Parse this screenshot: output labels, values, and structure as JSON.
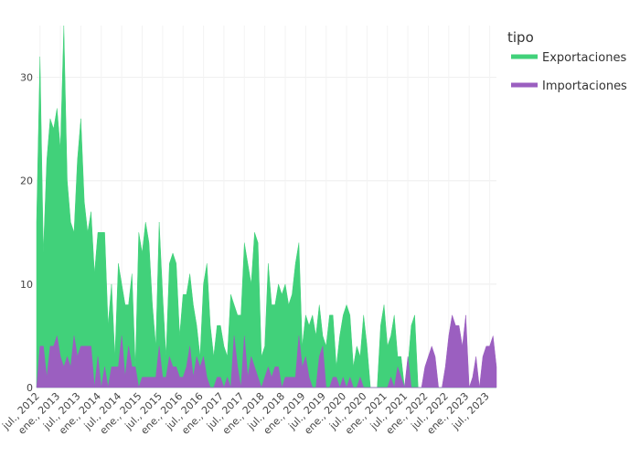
{
  "chart_data": {
    "type": "area",
    "legend_title": "tipo",
    "x": [
      "2012-06",
      "2012-07",
      "2012-08",
      "2012-09",
      "2012-10",
      "2012-11",
      "2012-12",
      "2013-01",
      "2013-02",
      "2013-03",
      "2013-04",
      "2013-05",
      "2013-06",
      "2013-07",
      "2013-08",
      "2013-09",
      "2013-10",
      "2013-11",
      "2013-12",
      "2014-01",
      "2014-02",
      "2014-03",
      "2014-04",
      "2014-05",
      "2014-06",
      "2014-07",
      "2014-08",
      "2014-09",
      "2014-10",
      "2014-11",
      "2014-12",
      "2015-01",
      "2015-02",
      "2015-03",
      "2015-04",
      "2015-05",
      "2015-06",
      "2015-07",
      "2015-08",
      "2015-09",
      "2015-10",
      "2015-11",
      "2015-12",
      "2016-01",
      "2016-02",
      "2016-03",
      "2016-04",
      "2016-05",
      "2016-06",
      "2016-07",
      "2016-08",
      "2016-09",
      "2016-10",
      "2016-11",
      "2016-12",
      "2017-01",
      "2017-02",
      "2017-03",
      "2017-04",
      "2017-05",
      "2017-06",
      "2017-07",
      "2017-08",
      "2017-09",
      "2017-10",
      "2017-11",
      "2017-12",
      "2018-01",
      "2018-02",
      "2018-03",
      "2018-04",
      "2018-05",
      "2018-06",
      "2018-07",
      "2018-08",
      "2018-09",
      "2018-10",
      "2018-11",
      "2018-12",
      "2019-01",
      "2019-02",
      "2019-03",
      "2019-04",
      "2019-05",
      "2019-06",
      "2019-07",
      "2019-08",
      "2019-09",
      "2019-10",
      "2019-11",
      "2019-12",
      "2020-01",
      "2020-02",
      "2020-03",
      "2020-04",
      "2020-05",
      "2020-06",
      "2020-07",
      "2020-08",
      "2020-09",
      "2020-10",
      "2020-11",
      "2020-12",
      "2021-01",
      "2021-02",
      "2021-03",
      "2021-04",
      "2021-05",
      "2021-06",
      "2021-07",
      "2021-08",
      "2021-09",
      "2021-10",
      "2021-11",
      "2021-12",
      "2022-01",
      "2022-02",
      "2022-03",
      "2022-04",
      "2022-05",
      "2022-06",
      "2022-07",
      "2022-08",
      "2022-09",
      "2022-10",
      "2022-11",
      "2022-12",
      "2023-01",
      "2023-02",
      "2023-03",
      "2023-04",
      "2023-05",
      "2023-06",
      "2023-07",
      "2023-08",
      "2023-09"
    ],
    "series": [
      {
        "name": "Exportaciones",
        "color": "#41d17a",
        "values": [
          16,
          32,
          13,
          22,
          26,
          25,
          27,
          23,
          35,
          20,
          16,
          15,
          22,
          26,
          18,
          15,
          17,
          11,
          15,
          15,
          15,
          6,
          10,
          3,
          12,
          10,
          8,
          8,
          11,
          2,
          15,
          13,
          16,
          14,
          8,
          4,
          16,
          9,
          3,
          12,
          13,
          12,
          5,
          9,
          9,
          11,
          8,
          6,
          3,
          10,
          12,
          6,
          3,
          6,
          6,
          4,
          3,
          9,
          8,
          7,
          7,
          14,
          12,
          10,
          15,
          14,
          3,
          4,
          12,
          8,
          8,
          10,
          9,
          10,
          8,
          9,
          12,
          14,
          4,
          7,
          6,
          7,
          5,
          8,
          5,
          4,
          7,
          7,
          2,
          5,
          7,
          8,
          7,
          2,
          4,
          3,
          7,
          4,
          0,
          0,
          0,
          6,
          8,
          4,
          5,
          7,
          3,
          3,
          0,
          2,
          6,
          7,
          0,
          0,
          0,
          0,
          0,
          0,
          0,
          0,
          0,
          0,
          0,
          0,
          0,
          0,
          0,
          0,
          0,
          0,
          0,
          0,
          0,
          0,
          0,
          0
        ]
      },
      {
        "name": "Importaciones",
        "color": "#9b5fc0",
        "values": [
          0,
          4,
          4,
          1,
          4,
          4,
          5,
          3,
          2,
          3,
          2,
          5,
          3,
          4,
          4,
          4,
          4,
          0,
          3,
          0,
          2,
          0,
          2,
          2,
          2,
          5,
          1,
          4,
          2,
          2,
          0,
          1,
          1,
          1,
          1,
          1,
          4,
          1,
          1,
          3,
          2,
          2,
          1,
          1,
          2,
          4,
          1,
          3,
          2,
          3,
          1,
          0,
          0,
          1,
          1,
          0,
          1,
          0,
          5,
          2,
          0,
          5,
          1,
          3,
          2,
          1,
          0,
          1,
          2,
          1,
          2,
          2,
          0,
          1,
          1,
          1,
          1,
          5,
          2,
          3,
          1,
          0,
          0,
          3,
          4,
          0,
          0,
          1,
          1,
          0,
          1,
          0,
          1,
          0,
          0,
          1,
          0,
          0,
          0,
          0,
          0,
          0,
          0,
          0,
          1,
          0,
          2,
          1,
          0,
          3,
          0,
          0,
          0,
          0,
          2,
          3,
          4,
          3,
          0,
          0,
          2,
          5,
          7,
          6,
          6,
          4,
          7,
          0,
          1,
          3,
          0,
          3,
          4,
          4,
          5,
          2
        ]
      }
    ],
    "xlim": [
      "2012-06",
      "2023-09"
    ],
    "xticks": [
      {
        "value": "2012-07",
        "label": "jul., 2012"
      },
      {
        "value": "2013-01",
        "label": "ene., 2013"
      },
      {
        "value": "2013-07",
        "label": "jul., 2013"
      },
      {
        "value": "2014-01",
        "label": "ene., 2014"
      },
      {
        "value": "2014-07",
        "label": "jul., 2014"
      },
      {
        "value": "2015-01",
        "label": "ene., 2015"
      },
      {
        "value": "2015-07",
        "label": "jul., 2015"
      },
      {
        "value": "2016-01",
        "label": "ene., 2016"
      },
      {
        "value": "2016-07",
        "label": "jul., 2016"
      },
      {
        "value": "2017-01",
        "label": "ene., 2017"
      },
      {
        "value": "2017-07",
        "label": "jul., 2017"
      },
      {
        "value": "2018-01",
        "label": "ene., 2018"
      },
      {
        "value": "2018-07",
        "label": "jul., 2018"
      },
      {
        "value": "2019-01",
        "label": "ene., 2019"
      },
      {
        "value": "2019-07",
        "label": "jul., 2019"
      },
      {
        "value": "2020-01",
        "label": "ene., 2020"
      },
      {
        "value": "2020-07",
        "label": "jul., 2020"
      },
      {
        "value": "2021-01",
        "label": "ene., 2021"
      },
      {
        "value": "2021-07",
        "label": "jul., 2021"
      },
      {
        "value": "2022-01",
        "label": "ene., 2022"
      },
      {
        "value": "2022-07",
        "label": "jul., 2022"
      },
      {
        "value": "2023-01",
        "label": "ene., 2023"
      },
      {
        "value": "2023-07",
        "label": "jul., 2023"
      }
    ],
    "ylim": [
      0,
      35
    ],
    "yticks": [
      0,
      10,
      20,
      30
    ],
    "grid": true
  }
}
